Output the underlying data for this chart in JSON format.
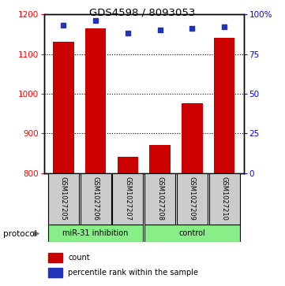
{
  "title": "GDS4598 / 8093053",
  "samples": [
    "GSM1027205",
    "GSM1027206",
    "GSM1027207",
    "GSM1027208",
    "GSM1027209",
    "GSM1027210"
  ],
  "counts": [
    1130,
    1165,
    840,
    870,
    975,
    1140
  ],
  "percentile_ranks": [
    93,
    96,
    88,
    90,
    91,
    92
  ],
  "ylim_left": [
    800,
    1200
  ],
  "ylim_right": [
    0,
    100
  ],
  "yticks_left": [
    800,
    900,
    1000,
    1100,
    1200
  ],
  "yticks_right": [
    0,
    25,
    50,
    75,
    100
  ],
  "bar_color": "#cc0000",
  "dot_color": "#2233bb",
  "bar_width": 0.65,
  "background_color": "#ffffff",
  "sample_box_color": "#cccccc",
  "green_color": "#88ee88",
  "protocol_label": "protocol",
  "legend_count_label": "count",
  "legend_percentile_label": "percentile rank within the sample",
  "group1_label": "miR-31 inhibition",
  "group2_label": "control"
}
